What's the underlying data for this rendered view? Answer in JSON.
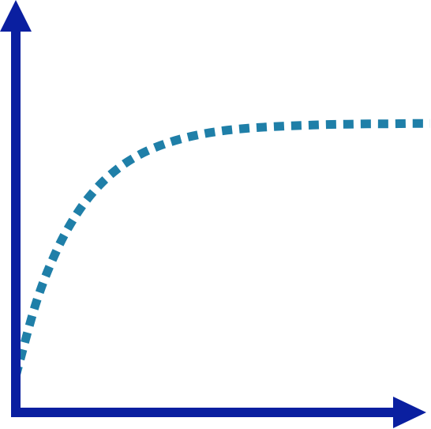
{
  "chart_data": {
    "type": "line",
    "title": "",
    "xlabel": "",
    "ylabel": "",
    "xlim": [
      0,
      10
    ],
    "ylim": [
      0,
      10
    ],
    "grid": false,
    "legend": "none",
    "ticks": "none",
    "series": [
      {
        "style": "dotted",
        "color": "#1f7fa8",
        "x": [
          0,
          0.5,
          1,
          1.5,
          2,
          2.5,
          3,
          3.5,
          4,
          4.5,
          5,
          5.5,
          6,
          6.5,
          7,
          7.5,
          8,
          8.5,
          9,
          9.5,
          10
        ],
        "values": [
          1.0,
          3.05,
          4.49,
          5.51,
          6.23,
          6.74,
          7.1,
          7.35,
          7.53,
          7.66,
          7.75,
          7.81,
          7.85,
          7.88,
          7.9,
          7.92,
          7.93,
          7.94,
          7.94,
          7.95,
          7.95
        ]
      }
    ]
  },
  "colors": {
    "axis": "#0a1fa0",
    "curve": "#1f7fa8",
    "background": "#ffffff"
  }
}
